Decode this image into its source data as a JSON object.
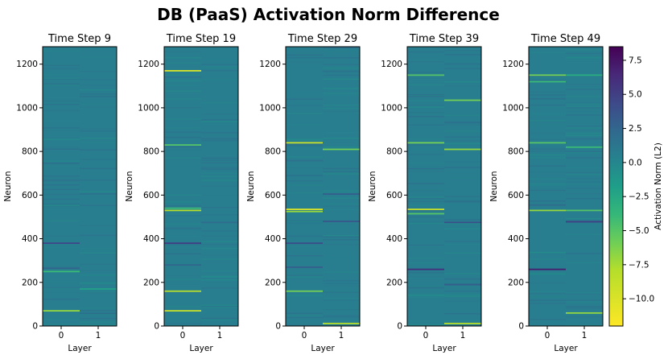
{
  "title": "DB (PaaS) Activation Norm Difference",
  "chart_data": [
    {
      "type": "heatmap",
      "title": "Time Step 9",
      "xlabel": "Layer",
      "ylabel": "Neuron",
      "x_categories": [
        "0",
        "1"
      ],
      "yticks": [
        0,
        200,
        400,
        600,
        800,
        1000,
        1200
      ],
      "ylim": [
        0,
        1280
      ],
      "stripes": [
        {
          "layer": 0,
          "neuron": 1180,
          "value": 1.0
        },
        {
          "layer": 0,
          "neuron": 1110,
          "value": 1.2
        },
        {
          "layer": 0,
          "neuron": 380,
          "value": 4.5
        },
        {
          "layer": 0,
          "neuron": 265,
          "value": 2.5
        },
        {
          "layer": 0,
          "neuron": 250,
          "value": -4.0
        },
        {
          "layer": 0,
          "neuron": 70,
          "value": -7.0
        },
        {
          "layer": 1,
          "neuron": 1130,
          "value": 1.0
        },
        {
          "layer": 1,
          "neuron": 170,
          "value": -2.0
        }
      ]
    },
    {
      "type": "heatmap",
      "title": "Time Step 19",
      "xlabel": "Layer",
      "ylabel": "Neuron",
      "x_categories": [
        "0",
        "1"
      ],
      "yticks": [
        0,
        200,
        400,
        600,
        800,
        1000,
        1200
      ],
      "ylim": [
        0,
        1280
      ],
      "stripes": [
        {
          "layer": 0,
          "neuron": 1170,
          "value": -10.0
        },
        {
          "layer": 0,
          "neuron": 830,
          "value": -5.0
        },
        {
          "layer": 0,
          "neuron": 540,
          "value": -4.0
        },
        {
          "layer": 0,
          "neuron": 530,
          "value": -8.0
        },
        {
          "layer": 0,
          "neuron": 380,
          "value": 5.0
        },
        {
          "layer": 0,
          "neuron": 280,
          "value": 2.5
        },
        {
          "layer": 0,
          "neuron": 160,
          "value": -8.0
        },
        {
          "layer": 0,
          "neuron": 70,
          "value": -9.0
        },
        {
          "layer": 1,
          "neuron": 475,
          "value": 2.0
        }
      ]
    },
    {
      "type": "heatmap",
      "title": "Time Step 29",
      "xlabel": "Layer",
      "ylabel": "Neuron",
      "x_categories": [
        "0",
        "1"
      ],
      "yticks": [
        0,
        200,
        400,
        600,
        800,
        1000,
        1200
      ],
      "ylim": [
        0,
        1280
      ],
      "stripes": [
        {
          "layer": 0,
          "neuron": 840,
          "value": -9.0
        },
        {
          "layer": 0,
          "neuron": 535,
          "value": -10.0
        },
        {
          "layer": 0,
          "neuron": 525,
          "value": -7.0
        },
        {
          "layer": 0,
          "neuron": 380,
          "value": 4.0
        },
        {
          "layer": 0,
          "neuron": 270,
          "value": 3.0
        },
        {
          "layer": 0,
          "neuron": 160,
          "value": -6.0
        },
        {
          "layer": 1,
          "neuron": 810,
          "value": -6.0
        },
        {
          "layer": 1,
          "neuron": 605,
          "value": 3.0
        },
        {
          "layer": 1,
          "neuron": 480,
          "value": 3.5
        },
        {
          "layer": 1,
          "neuron": 12,
          "value": -8.0
        }
      ]
    },
    {
      "type": "heatmap",
      "title": "Time Step 39",
      "xlabel": "Layer",
      "ylabel": "Neuron",
      "x_categories": [
        "0",
        "1"
      ],
      "yticks": [
        0,
        200,
        400,
        600,
        800,
        1000,
        1200
      ],
      "ylim": [
        0,
        1280
      ],
      "stripes": [
        {
          "layer": 0,
          "neuron": 1150,
          "value": -5.0
        },
        {
          "layer": 0,
          "neuron": 840,
          "value": -6.0
        },
        {
          "layer": 0,
          "neuron": 535,
          "value": -9.0
        },
        {
          "layer": 0,
          "neuron": 515,
          "value": -5.0
        },
        {
          "layer": 0,
          "neuron": 260,
          "value": 6.0
        },
        {
          "layer": 1,
          "neuron": 1035,
          "value": -6.0
        },
        {
          "layer": 1,
          "neuron": 810,
          "value": -7.0
        },
        {
          "layer": 1,
          "neuron": 475,
          "value": 4.0
        },
        {
          "layer": 1,
          "neuron": 190,
          "value": 3.0
        },
        {
          "layer": 1,
          "neuron": 12,
          "value": -8.0
        }
      ]
    },
    {
      "type": "heatmap",
      "title": "Time Step 49",
      "xlabel": "Layer",
      "ylabel": "Neuron",
      "x_categories": [
        "0",
        "1"
      ],
      "yticks": [
        0,
        200,
        400,
        600,
        800,
        1000,
        1200
      ],
      "ylim": [
        0,
        1280
      ],
      "stripes": [
        {
          "layer": 0,
          "neuron": 1150,
          "value": -6.0
        },
        {
          "layer": 0,
          "neuron": 1120,
          "value": -4.0
        },
        {
          "layer": 0,
          "neuron": 840,
          "value": -5.0
        },
        {
          "layer": 0,
          "neuron": 555,
          "value": 2.0
        },
        {
          "layer": 0,
          "neuron": 530,
          "value": -7.0
        },
        {
          "layer": 0,
          "neuron": 260,
          "value": 7.0
        },
        {
          "layer": 1,
          "neuron": 1150,
          "value": -3.0
        },
        {
          "layer": 1,
          "neuron": 820,
          "value": -4.0
        },
        {
          "layer": 1,
          "neuron": 530,
          "value": -5.0
        },
        {
          "layer": 1,
          "neuron": 478,
          "value": 5.0
        },
        {
          "layer": 1,
          "neuron": 60,
          "value": -7.0
        }
      ]
    }
  ],
  "colorbar": {
    "label": "Activation Norm (L2)",
    "colormap": "viridis_r",
    "vmin": -12,
    "vmax": 8.5,
    "ticks": [
      7.5,
      5.0,
      2.5,
      0.0,
      -2.5,
      -5.0,
      -7.5,
      -10.0
    ],
    "tick_labels": [
      "7.5",
      "5.0",
      "2.5",
      "0.0",
      "−2.5",
      "−5.0",
      "−7.5",
      "−10.0"
    ]
  }
}
